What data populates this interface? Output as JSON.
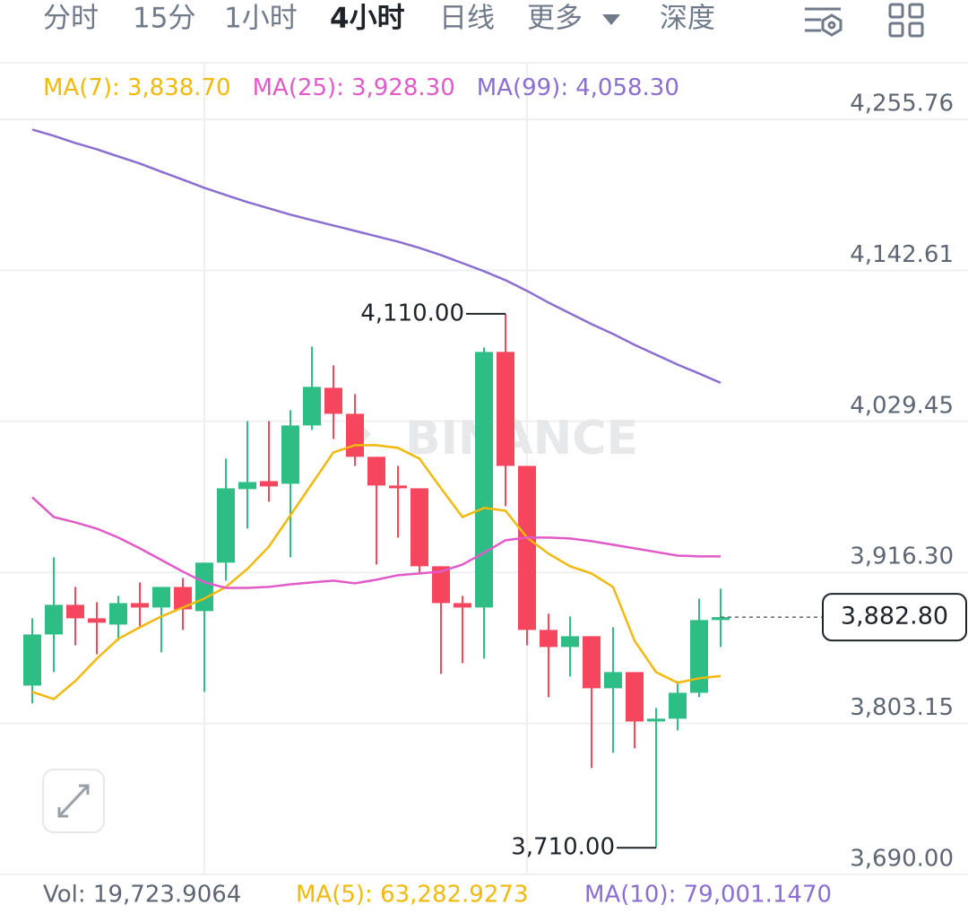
{
  "tabs": [
    "分时",
    "15分",
    "1小时",
    "4小时",
    "日线",
    "更多",
    "深度"
  ],
  "active_tab": "4小时",
  "chart_data": {
    "type": "candlestick",
    "watermark": "BINANCE",
    "up_color": "#2ebd85",
    "down_color": "#f6465d",
    "open": [
      3831.5,
      3869.8,
      3892.0,
      3881.9,
      3877.2,
      3893.3,
      3890.0,
      3905.4,
      3887.3,
      3923.6,
      3978.7,
      3984.7,
      3982.7,
      4026.4,
      4054.6,
      4035.1,
      4002.9,
      3981.4,
      3979.3,
      3920.9,
      3893.3,
      3890.0,
      4081.5,
      3996.1,
      3873.2,
      3860.4,
      3868.5,
      3829.5,
      3841.6,
      3804.6,
      3806.7,
      3826.1,
      3880.6
    ],
    "high": [
      3881.9,
      3927.6,
      3905.4,
      3894.0,
      3898.7,
      3908.8,
      3905.4,
      3912.1,
      3923.6,
      4001.5,
      4029.7,
      4029.7,
      4037.8,
      4085.5,
      4071.4,
      4049.9,
      4002.9,
      3996.1,
      3979.3,
      3920.9,
      3898.7,
      4084.8,
      4110.0,
      3996.1,
      3885.3,
      3883.3,
      3868.5,
      3875.2,
      3841.6,
      3814.7,
      3834.9,
      3896.7,
      3904.1
    ],
    "low": [
      3818.1,
      3841.6,
      3861.7,
      3855.0,
      3865.1,
      3875.2,
      3856.4,
      3873.2,
      3826.8,
      3910.1,
      3949.1,
      3969.3,
      3927.6,
      4023.0,
      4016.3,
      3996.1,
      3922.2,
      3942.4,
      3915.5,
      3840.3,
      3848.3,
      3851.7,
      3965.9,
      3861.7,
      3822.8,
      3838.3,
      3769.7,
      3781.1,
      3784.5,
      3710.0,
      3797.9,
      3822.8,
      3860.4
    ],
    "close": [
      3869.8,
      3892.0,
      3881.9,
      3878.6,
      3893.3,
      3890.0,
      3905.4,
      3888.6,
      3923.6,
      3979.3,
      3984.0,
      3980.7,
      4026.4,
      4055.3,
      4035.1,
      4002.9,
      3981.4,
      3979.3,
      3920.9,
      3893.3,
      3890.0,
      4081.5,
      3996.1,
      3873.2,
      3860.4,
      3868.5,
      3829.5,
      3841.6,
      3804.6,
      3806.7,
      3826.1,
      3880.6,
      3882.8
    ],
    "series": [
      {
        "name": "MA(7):",
        "color": "#f0b90b",
        "value_label": "3,838.70",
        "values": [
          3826.8,
          3821.4,
          3834.9,
          3851.7,
          3866.5,
          3875.2,
          3883.3,
          3890.0,
          3896.7,
          3905.4,
          3918.9,
          3935.6,
          3959.1,
          3982.7,
          4006.2,
          4011.6,
          4011.6,
          4009.6,
          4001.5,
          3979.3,
          3957.8,
          3964.6,
          3962.5,
          3942.4,
          3930.3,
          3920.9,
          3915.5,
          3905.4,
          3865.1,
          3841.6,
          3833.6,
          3837.0,
          3838.7
        ]
      },
      {
        "name": "MA(25):",
        "color": "#e05bc9",
        "value_label": "3,928.30",
        "values": [
          3972.6,
          3957.8,
          3953.8,
          3949.1,
          3942.4,
          3934.3,
          3925.6,
          3916.9,
          3908.8,
          3904.7,
          3904.7,
          3905.4,
          3907.4,
          3908.8,
          3910.1,
          3908.1,
          3910.8,
          3914.2,
          3915.5,
          3916.9,
          3922.2,
          3931.0,
          3940.4,
          3942.4,
          3942.4,
          3941.7,
          3939.7,
          3937.0,
          3934.3,
          3931.6,
          3928.9,
          3928.3,
          3928.3
        ]
      },
      {
        "name": "MA(99):",
        "color": "#8a6fd1",
        "value_label": "4,058.30",
        "values": [
          4248.1,
          4243.4,
          4238.0,
          4233.3,
          4227.9,
          4222.6,
          4216.5,
          4210.5,
          4204.4,
          4199.0,
          4193.7,
          4189.0,
          4184.3,
          4180.2,
          4176.2,
          4172.2,
          4168.1,
          4164.1,
          4159.4,
          4154.0,
          4148.0,
          4141.9,
          4135.2,
          4127.2,
          4118.4,
          4110.4,
          4102.3,
          4094.9,
          4086.8,
          4079.4,
          4072.0,
          4065.3,
          4058.3
        ]
      }
    ],
    "ylim": [
      3690,
      4255.76
    ],
    "yticks": [
      {
        "value": 4255.76,
        "label": "4,255.76"
      },
      {
        "value": 4142.61,
        "label": "4,142.61"
      },
      {
        "value": 4029.45,
        "label": "4,029.45"
      },
      {
        "value": 3916.3,
        "label": "3,916.30"
      },
      {
        "value": 3803.15,
        "label": "3,803.15"
      },
      {
        "value": 3690,
        "label": "3,690.00"
      }
    ],
    "annotations": [
      {
        "value": 4110,
        "label": "4,110.00"
      },
      {
        "value": 3710,
        "label": "3,710.00"
      }
    ],
    "last_price": {
      "value": 3882.8,
      "label": "3,882.80"
    }
  },
  "volume_bar": {
    "vol": "Vol: 19,723.9064",
    "ma5": "MA(5): 63,282.9273",
    "ma10": "MA(10): 79,001.1470"
  }
}
